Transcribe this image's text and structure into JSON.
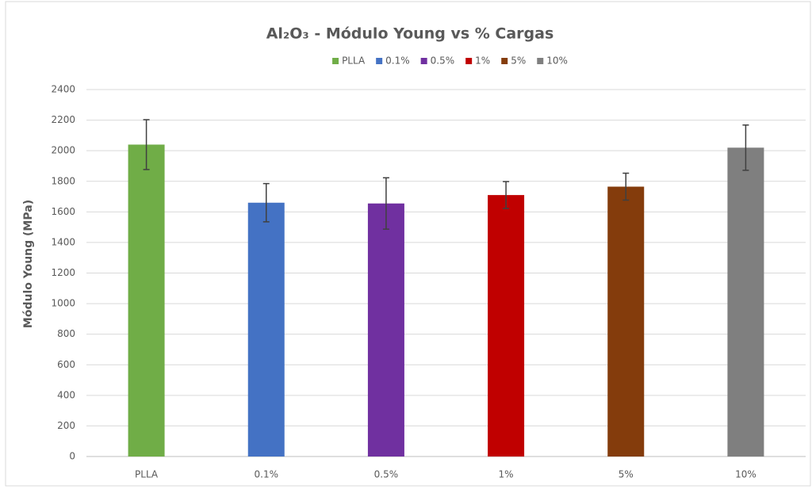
{
  "chart_data": {
    "type": "bar",
    "title": "Al₂O₃ - Módulo Young vs % Cargas",
    "y_label": "Módulo Young (MPa)",
    "categories": [
      "PLLA",
      "0.1%",
      "0.5%",
      "1%",
      "5%",
      "10%"
    ],
    "values": [
      2040,
      1660,
      1655,
      1710,
      1765,
      2020
    ],
    "errors": [
      163,
      125,
      168,
      88,
      88,
      148
    ],
    "colors": [
      "#70ad47",
      "#4472c4",
      "#7030a0",
      "#c00000",
      "#843c0c",
      "#7f7f7f"
    ],
    "ylim": [
      0,
      2400
    ],
    "yticks": [
      0,
      200,
      400,
      600,
      800,
      1000,
      1200,
      1400,
      1600,
      1800,
      2000,
      2200,
      2400
    ],
    "grid": true,
    "legend": "top"
  }
}
